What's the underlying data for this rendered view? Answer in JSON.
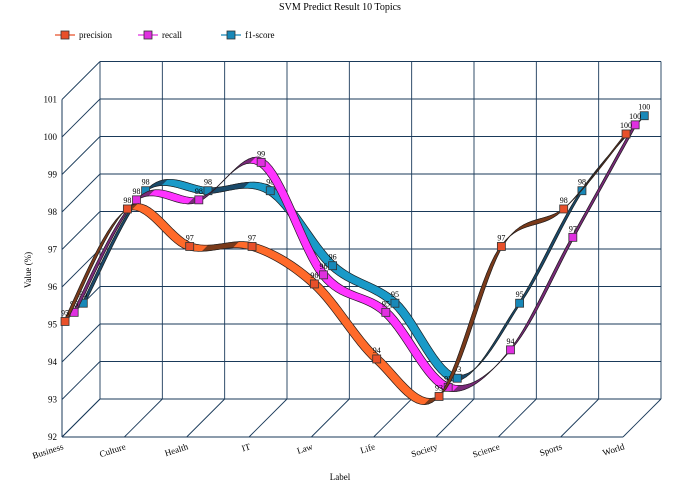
{
  "chart_data": {
    "type": "line",
    "title": "SVM Predict Result 10 Topics",
    "xlabel": "Label",
    "ylabel": "Value (%)",
    "categories": [
      "Business",
      "Culture",
      "Health",
      "IT",
      "Law",
      "Life",
      "Society",
      "Science",
      "Sports",
      "World"
    ],
    "ylim": [
      92,
      101
    ],
    "yticks": [
      92,
      93,
      94,
      95,
      96,
      97,
      98,
      99,
      100,
      101
    ],
    "grid": true,
    "legend_position": "top-left",
    "style": "3d-ribbon",
    "series": [
      {
        "name": "precision",
        "color": "#ff6a2a",
        "dark": "#7a3a1a",
        "marker": "#e8502a",
        "values": [
          95,
          98,
          97,
          97,
          96,
          94,
          93,
          97,
          98,
          100
        ]
      },
      {
        "name": "recall",
        "color": "#ff33ff",
        "dark": "#7a2a7a",
        "marker": "#e030e0",
        "values": [
          95,
          98,
          98,
          99,
          96,
          95,
          93,
          94,
          97,
          100
        ]
      },
      {
        "name": "f1-score",
        "color": "#1a9ac8",
        "dark": "#1a4a6a",
        "marker": "#1888b8",
        "values": [
          95,
          98,
          98,
          98,
          96,
          95,
          93,
          95,
          98,
          100
        ]
      }
    ]
  }
}
